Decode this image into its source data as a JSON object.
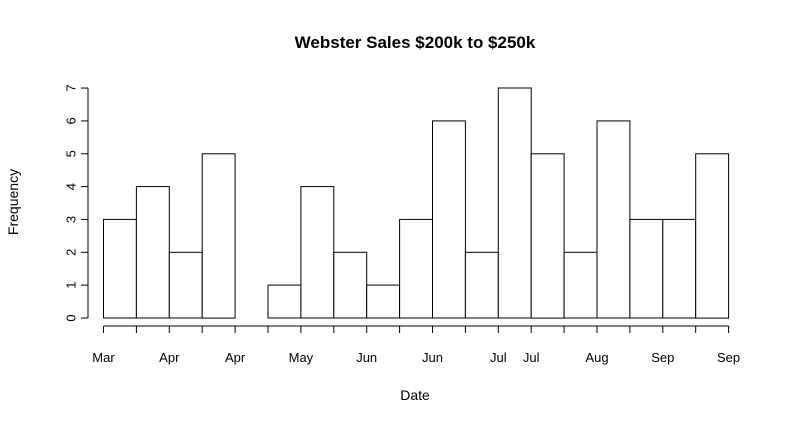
{
  "chart_data": {
    "type": "bar",
    "title": "Webster Sales $200k to $250k",
    "xlabel": "Date",
    "ylabel": "Frequency",
    "bins": 19,
    "values": [
      3,
      4,
      2,
      5,
      0,
      1,
      4,
      2,
      1,
      3,
      6,
      2,
      7,
      5,
      2,
      6,
      3,
      3,
      5
    ],
    "ylim": [
      0,
      7
    ],
    "yticks": [
      0,
      1,
      2,
      3,
      4,
      5,
      6,
      7
    ],
    "xtick_labels": [
      {
        "label": "Mar",
        "bin_edge": 0
      },
      {
        "label": "Apr",
        "bin_edge": 2
      },
      {
        "label": "Apr",
        "bin_edge": 4
      },
      {
        "label": "May",
        "bin_edge": 6
      },
      {
        "label": "Jun",
        "bin_edge": 8
      },
      {
        "label": "Jun",
        "bin_edge": 10
      },
      {
        "label": "Jul",
        "bin_edge": 12
      },
      {
        "label": "Jul",
        "bin_edge": 13
      },
      {
        "label": "Aug",
        "bin_edge": 15
      },
      {
        "label": "Sep",
        "bin_edge": 17
      },
      {
        "label": "Sep",
        "bin_edge": 19
      }
    ],
    "grid": false,
    "legend": "none"
  }
}
